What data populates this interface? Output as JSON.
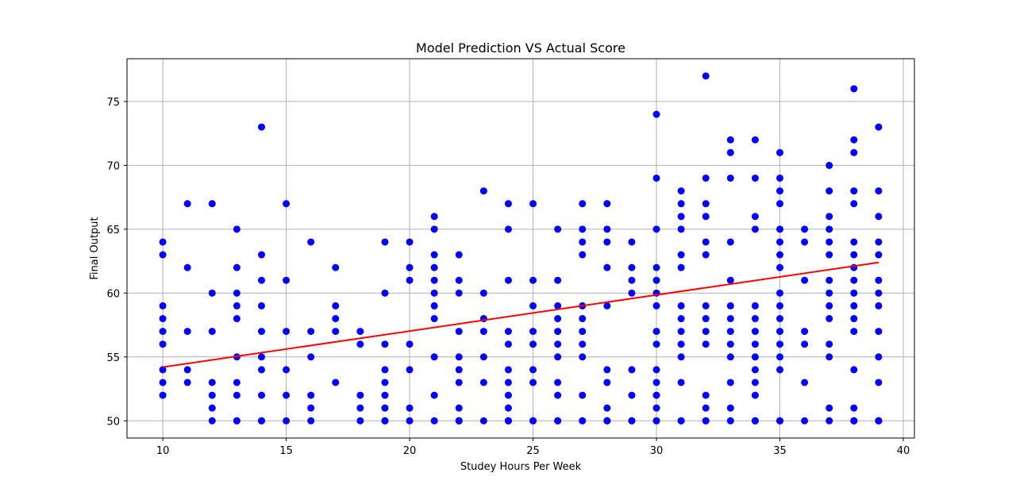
{
  "chart_data": {
    "type": "scatter",
    "title": "Model Prediction VS Actual Score",
    "xlabel": "Studey Hours Per Week",
    "ylabel": "Final Output",
    "xlim": [
      8.55,
      40.45
    ],
    "ylim": [
      48.65,
      78.35
    ],
    "xticks": [
      10,
      15,
      20,
      25,
      30,
      35,
      40
    ],
    "yticks": [
      50,
      55,
      60,
      65,
      70,
      75
    ],
    "grid": true,
    "colors": {
      "points": "#0000ff",
      "fit_line": "#ff0000"
    },
    "fit_line": {
      "x": [
        10,
        39
      ],
      "y": [
        54.2,
        62.4
      ]
    },
    "series": [
      {
        "x": [
          10,
          10,
          10,
          10,
          10,
          10,
          10,
          10,
          10,
          11,
          11,
          11,
          11,
          11,
          12,
          12,
          12,
          12,
          12,
          12,
          12,
          13,
          13,
          13,
          13,
          13,
          13,
          13,
          13,
          13,
          13,
          14,
          14,
          14,
          14,
          14,
          14,
          14,
          14,
          14,
          14,
          15,
          15,
          15,
          15,
          15,
          15,
          16,
          16,
          16,
          16,
          16,
          16,
          17,
          17,
          17,
          17,
          17,
          18,
          18,
          18,
          18,
          18,
          19,
          19,
          19,
          19,
          19,
          19,
          19,
          19,
          19,
          20,
          20,
          20,
          20,
          20,
          20,
          20,
          21,
          21,
          21,
          21,
          21,
          21,
          21,
          21,
          21,
          21,
          21,
          22,
          22,
          22,
          22,
          22,
          22,
          22,
          22,
          22,
          22,
          22,
          23,
          23,
          23,
          23,
          23,
          23,
          23,
          24,
          24,
          24,
          24,
          24,
          24,
          24,
          24,
          24,
          24,
          24,
          24,
          25,
          25,
          25,
          25,
          25,
          25,
          25,
          25,
          25,
          26,
          26,
          26,
          26,
          26,
          26,
          26,
          26,
          26,
          26,
          26,
          27,
          27,
          27,
          27,
          27,
          27,
          27,
          27,
          27,
          27,
          27,
          27,
          28,
          28,
          28,
          28,
          28,
          28,
          28,
          28,
          28,
          28,
          28,
          29,
          29,
          29,
          29,
          29,
          29,
          29,
          29,
          30,
          30,
          30,
          30,
          30,
          30,
          30,
          30,
          30,
          30,
          30,
          30,
          30,
          30,
          30,
          31,
          31,
          31,
          31,
          31,
          31,
          31,
          31,
          31,
          31,
          31,
          31,
          31,
          31,
          32,
          32,
          32,
          32,
          32,
          32,
          32,
          32,
          32,
          32,
          32,
          32,
          32,
          32,
          33,
          33,
          33,
          33,
          33,
          33,
          33,
          33,
          33,
          33,
          33,
          33,
          33,
          34,
          34,
          34,
          34,
          34,
          34,
          34,
          34,
          34,
          34,
          34,
          34,
          34,
          34,
          34,
          35,
          35,
          35,
          35,
          35,
          35,
          35,
          35,
          35,
          35,
          35,
          35,
          35,
          35,
          35,
          35,
          35,
          36,
          36,
          36,
          36,
          36,
          36,
          36,
          37,
          37,
          37,
          37,
          37,
          37,
          37,
          37,
          37,
          37,
          37,
          37,
          37,
          37,
          38,
          38,
          38,
          38,
          38,
          38,
          38,
          38,
          38,
          38,
          38,
          38,
          38,
          38,
          38,
          38,
          38,
          38,
          39,
          39,
          39,
          39,
          39,
          39,
          39,
          39,
          39,
          39,
          39,
          39,
          39,
          39
        ],
        "y": [
          64,
          63,
          59,
          58,
          57,
          56,
          54,
          53,
          52,
          67,
          62,
          57,
          54,
          53,
          67,
          60,
          57,
          53,
          52,
          51,
          50,
          65,
          62,
          60,
          59,
          58,
          55,
          53,
          52,
          50,
          50,
          73,
          63,
          61,
          59,
          57,
          55,
          54,
          52,
          50,
          50,
          67,
          61,
          57,
          54,
          52,
          50,
          64,
          57,
          55,
          52,
          51,
          50,
          62,
          59,
          58,
          57,
          53,
          57,
          56,
          52,
          51,
          50,
          64,
          60,
          56,
          54,
          53,
          52,
          51,
          50,
          50,
          64,
          62,
          61,
          56,
          54,
          51,
          50,
          66,
          65,
          63,
          62,
          61,
          60,
          59,
          58,
          55,
          52,
          50,
          63,
          61,
          60,
          57,
          55,
          54,
          53,
          51,
          50,
          50,
          50,
          68,
          60,
          58,
          57,
          55,
          53,
          50,
          67,
          65,
          61,
          57,
          56,
          54,
          53,
          52,
          51,
          50,
          50,
          50,
          67,
          61,
          59,
          57,
          56,
          54,
          53,
          50,
          50,
          65,
          61,
          59,
          58,
          57,
          56,
          55,
          53,
          52,
          50,
          50,
          67,
          65,
          64,
          63,
          59,
          58,
          57,
          56,
          55,
          52,
          50,
          50,
          67,
          65,
          64,
          62,
          59,
          54,
          53,
          51,
          50,
          50,
          50,
          64,
          62,
          61,
          60,
          54,
          52,
          50,
          50,
          74,
          69,
          65,
          62,
          61,
          60,
          59,
          57,
          56,
          54,
          53,
          52,
          51,
          50,
          50,
          68,
          67,
          66,
          65,
          63,
          62,
          59,
          58,
          57,
          56,
          55,
          53,
          50,
          50,
          77,
          69,
          67,
          66,
          64,
          63,
          59,
          58,
          57,
          56,
          52,
          51,
          50,
          50,
          72,
          71,
          69,
          64,
          61,
          59,
          58,
          57,
          56,
          55,
          53,
          51,
          50,
          72,
          69,
          66,
          65,
          59,
          58,
          57,
          56,
          55,
          54,
          53,
          52,
          50,
          50,
          50,
          71,
          69,
          68,
          67,
          65,
          64,
          63,
          62,
          60,
          59,
          58,
          57,
          56,
          55,
          54,
          50,
          50,
          65,
          64,
          61,
          57,
          56,
          53,
          50,
          70,
          68,
          66,
          65,
          64,
          63,
          61,
          60,
          59,
          58,
          56,
          55,
          51,
          50,
          76,
          72,
          71,
          68,
          67,
          64,
          63,
          62,
          61,
          60,
          59,
          58,
          57,
          54,
          51,
          50,
          50,
          50,
          73,
          68,
          66,
          64,
          63,
          61,
          60,
          59,
          57,
          55,
          53,
          50,
          50,
          50
        ]
      }
    ]
  }
}
